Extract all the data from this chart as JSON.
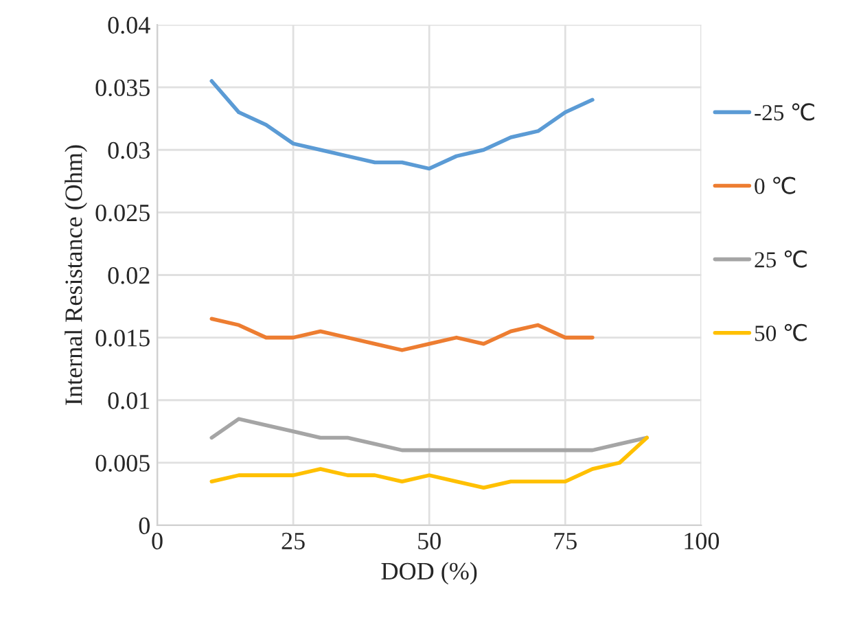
{
  "chart_data": {
    "type": "line",
    "xlabel": "DOD (%)",
    "ylabel": "Internal Resistance (Ohm)",
    "xlim": [
      0,
      100
    ],
    "xticks": [
      0,
      25,
      50,
      75,
      100
    ],
    "ylim": [
      0,
      0.04
    ],
    "yticks": [
      {
        "value": 0,
        "label": "0"
      },
      {
        "value": 0.005,
        "label": "0.005"
      },
      {
        "value": 0.01,
        "label": "0.01"
      },
      {
        "value": 0.015,
        "label": "0.015"
      },
      {
        "value": 0.02,
        "label": "0.02"
      },
      {
        "value": 0.025,
        "label": "0.025"
      },
      {
        "value": 0.03,
        "label": "0.03"
      },
      {
        "value": 0.035,
        "label": "0.035"
      },
      {
        "value": 0.04,
        "label": "0.04"
      }
    ],
    "grid": true,
    "legend": "right",
    "marker": "none",
    "line_style": "solid",
    "series": [
      {
        "name": "-25 ℃",
        "color": "#5b9bd5",
        "x": [
          10,
          15,
          20,
          25,
          30,
          35,
          40,
          45,
          50,
          55,
          60,
          65,
          70,
          75,
          80
        ],
        "values": [
          0.0355,
          0.033,
          0.032,
          0.0305,
          0.03,
          0.0295,
          0.029,
          0.029,
          0.0285,
          0.0295,
          0.03,
          0.031,
          0.0315,
          0.033,
          0.034
        ]
      },
      {
        "name": "0 ℃",
        "color": "#ed7d31",
        "x": [
          10,
          15,
          20,
          25,
          30,
          35,
          40,
          45,
          50,
          55,
          60,
          65,
          70,
          75,
          80
        ],
        "values": [
          0.0165,
          0.016,
          0.015,
          0.015,
          0.0155,
          0.015,
          0.0145,
          0.014,
          0.0145,
          0.015,
          0.0145,
          0.0155,
          0.016,
          0.015,
          0.015
        ]
      },
      {
        "name": "25 ℃",
        "color": "#a5a5a5",
        "x": [
          10,
          15,
          20,
          25,
          30,
          35,
          40,
          45,
          50,
          55,
          60,
          65,
          70,
          75,
          80,
          85,
          90
        ],
        "values": [
          0.007,
          0.0085,
          0.008,
          0.0075,
          0.007,
          0.007,
          0.0065,
          0.006,
          0.006,
          0.006,
          0.006,
          0.006,
          0.006,
          0.006,
          0.006,
          0.0065,
          0.007
        ]
      },
      {
        "name": "50 ℃",
        "color": "#ffc000",
        "x": [
          10,
          15,
          20,
          25,
          30,
          35,
          40,
          45,
          50,
          55,
          60,
          65,
          70,
          75,
          80,
          85,
          90
        ],
        "values": [
          0.0035,
          0.004,
          0.004,
          0.004,
          0.0045,
          0.004,
          0.004,
          0.0035,
          0.004,
          0.0035,
          0.003,
          0.0035,
          0.0035,
          0.0035,
          0.0045,
          0.005,
          0.007
        ]
      }
    ]
  }
}
